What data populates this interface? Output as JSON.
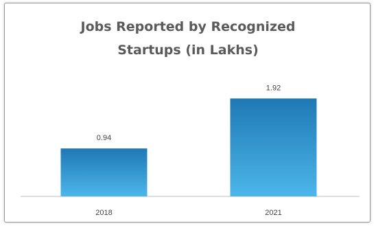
{
  "chart_data": {
    "type": "bar",
    "title": "Jobs Reported by Recognized Startups (in Lakhs)",
    "title_lines": [
      "Jobs Reported by Recognized",
      "Startups (in Lakhs)"
    ],
    "categories": [
      "2018",
      "2021"
    ],
    "values": [
      0.94,
      1.92
    ],
    "value_labels": [
      "0.94",
      "1.92"
    ],
    "xlabel": "",
    "ylabel": "",
    "ylim": [
      0,
      2.1
    ],
    "grid": false,
    "legend": "none",
    "colors": {
      "bar_top": "#1f78b4",
      "bar_bottom": "#4cb6ea",
      "axis": "#bfbfbf",
      "title": "#5a5a5a"
    }
  }
}
